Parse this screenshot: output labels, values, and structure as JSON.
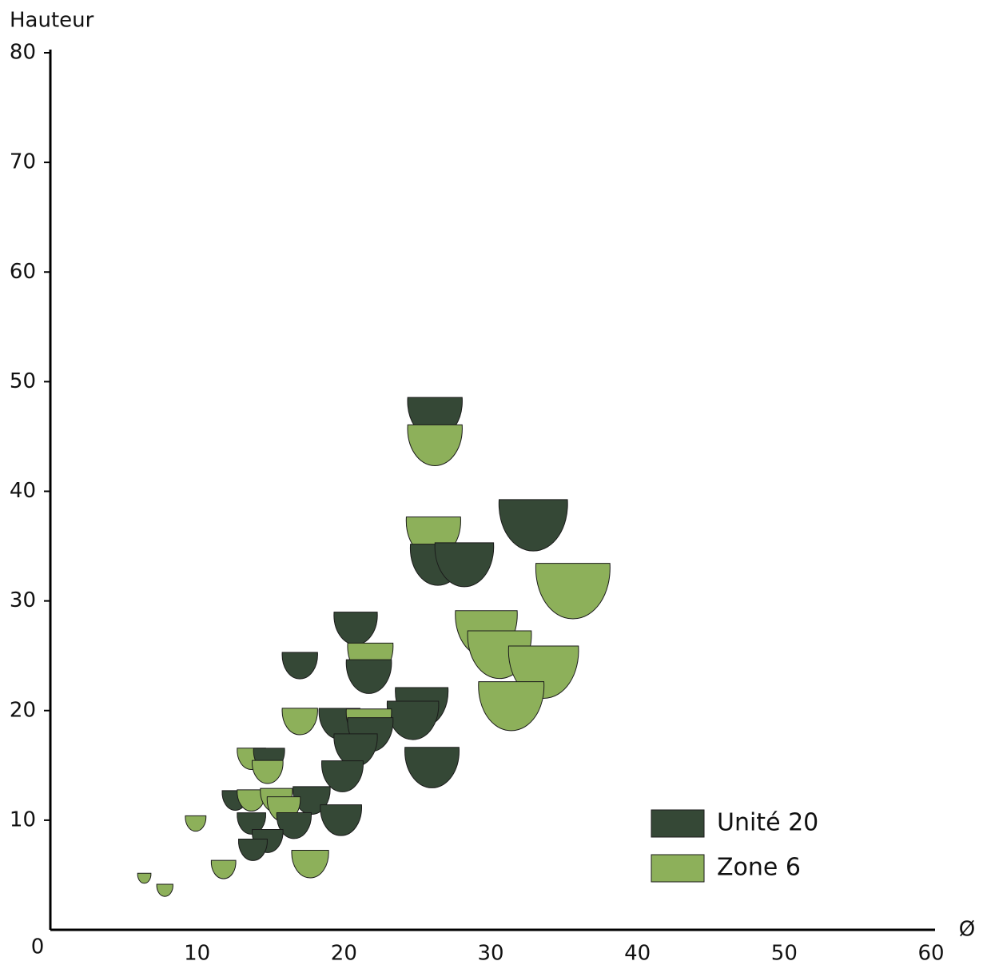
{
  "chart_data": {
    "type": "scatter",
    "y_label": "Hauteur",
    "x_label": "Ø",
    "xlim": [
      0,
      60
    ],
    "xticks": [
      10,
      20,
      30,
      40,
      50,
      60
    ],
    "ylim": [
      0,
      80
    ],
    "yticks": [
      0,
      10,
      20,
      30,
      40,
      50,
      60,
      70,
      80
    ],
    "legend": "bottom-right",
    "series": [
      {
        "name": "Unité 20",
        "color": "#354836",
        "x": [
          26.2,
          32.9,
          26.4,
          28.2,
          20.8,
          17.0,
          21.7,
          25.3,
          24.7,
          19.7,
          21.8,
          20.8,
          26.0,
          19.9,
          14.9,
          12.6,
          17.8,
          13.7,
          16.6,
          19.8,
          14.8,
          13.8
        ],
        "values": [
          46.7,
          36.9,
          33.3,
          33.3,
          27.5,
          24.1,
          23.1,
          20.3,
          19.1,
          18.8,
          17.8,
          16.4,
          14.8,
          14.0,
          15.5,
          11.8,
          11.8,
          9.7,
          9.5,
          10.0,
          8.1,
          7.3
        ]
      },
      {
        "name": "Zone 6",
        "color": "#8db05a",
        "x": [
          26.2,
          26.1,
          35.6,
          29.7,
          30.6,
          21.8,
          33.6,
          31.4,
          17.0,
          21.7,
          13.7,
          14.8,
          13.7,
          15.4,
          15.9,
          9.9,
          11.8,
          17.7,
          6.4,
          7.8
        ],
        "values": [
          44.2,
          35.8,
          30.9,
          27.0,
          25.1,
          24.6,
          23.5,
          20.4,
          19.0,
          18.6,
          15.6,
          14.4,
          11.8,
          11.8,
          11.0,
          9.7,
          5.5,
          6.0,
          4.7,
          3.6
        ]
      }
    ]
  }
}
